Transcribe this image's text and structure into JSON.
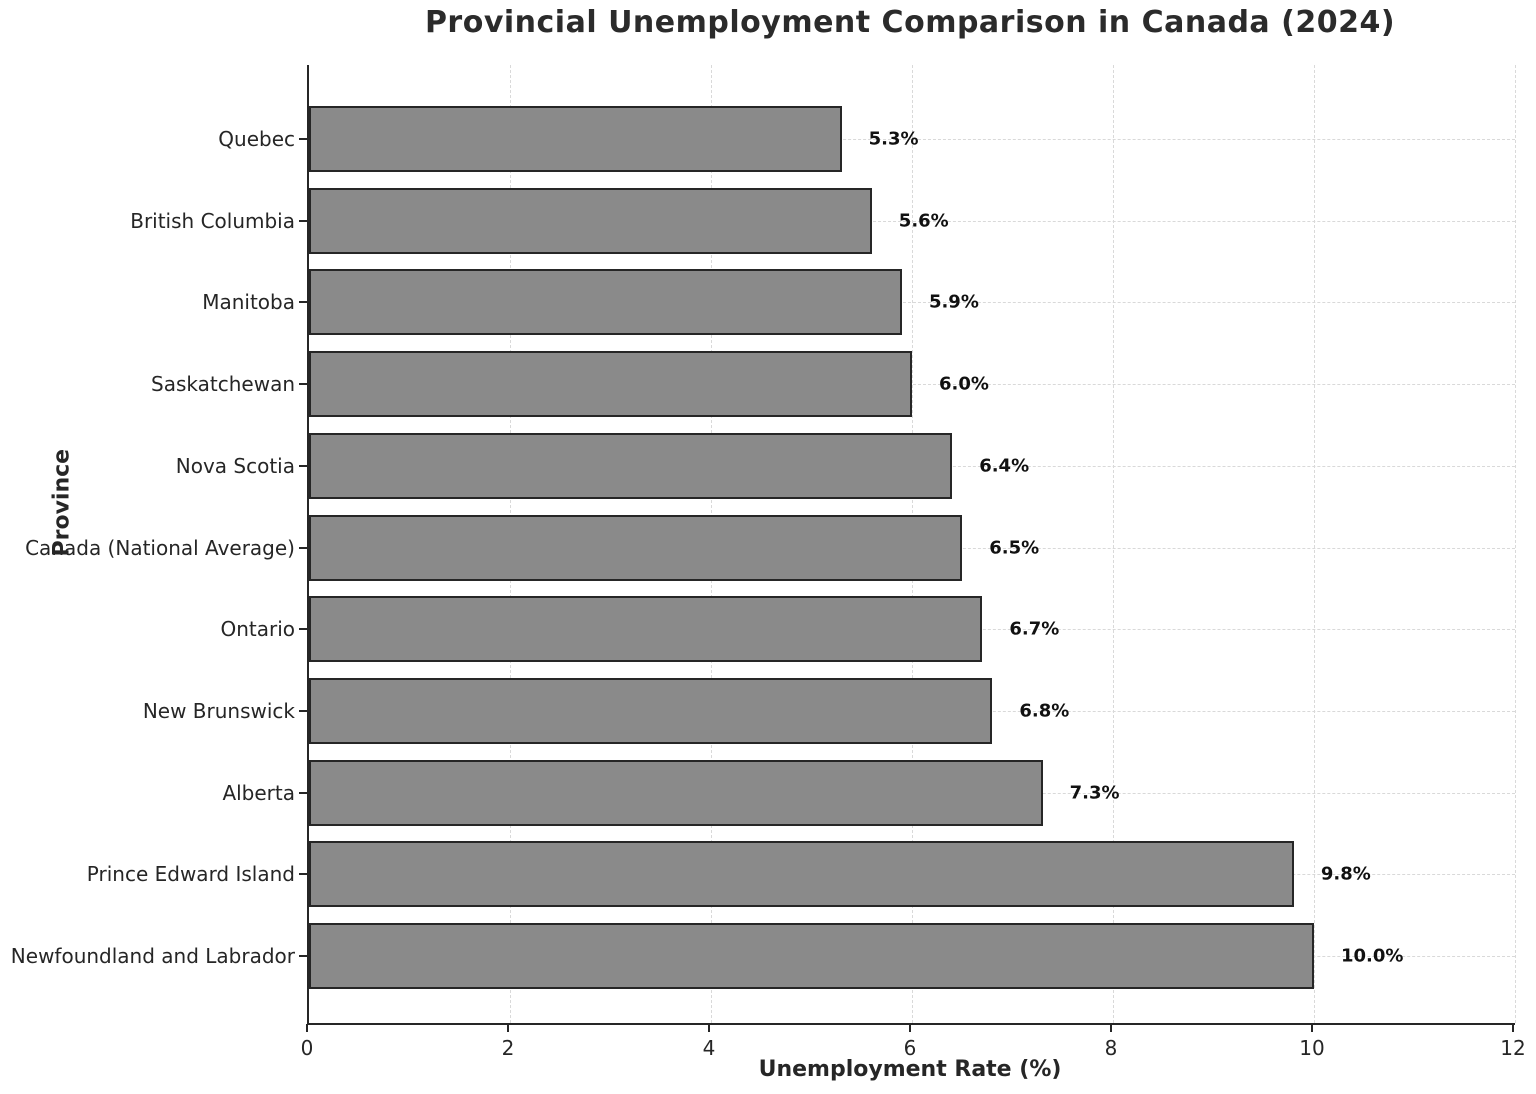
{
  "title": "Provincial Unemployment Comparison in Canada (2024)",
  "chart_data": {
    "type": "bar",
    "orientation": "horizontal",
    "title": "Provincial Unemployment Comparison in Canada (2024)",
    "categories": [
      "Quebec",
      "British Columbia",
      "Manitoba",
      "Saskatchewan",
      "Nova Scotia",
      "Canada (National Average)",
      "Ontario",
      "New Brunswick",
      "Alberta",
      "Prince Edward Island",
      "Newfoundland and Labrador"
    ],
    "values": [
      5.3,
      5.6,
      5.9,
      6.0,
      6.4,
      6.5,
      6.7,
      6.8,
      7.3,
      9.8,
      10.0
    ],
    "value_labels": [
      "5.3%",
      "5.6%",
      "5.9%",
      "6.0%",
      "6.4%",
      "6.5%",
      "6.7%",
      "6.8%",
      "7.3%",
      "9.8%",
      "10.0%"
    ],
    "xlabel": "Unemployment Rate (%)",
    "ylabel": "Province",
    "xlim": [
      0,
      12
    ],
    "xticks": [
      0,
      2,
      4,
      6,
      8,
      10,
      12
    ],
    "grid": true,
    "legend": false,
    "bar_color": "#8a8a8a",
    "bar_edge_color": "#262626",
    "grid_color": "#d9d9d9",
    "text_color": "#262626",
    "background_color": "#ffffff"
  }
}
